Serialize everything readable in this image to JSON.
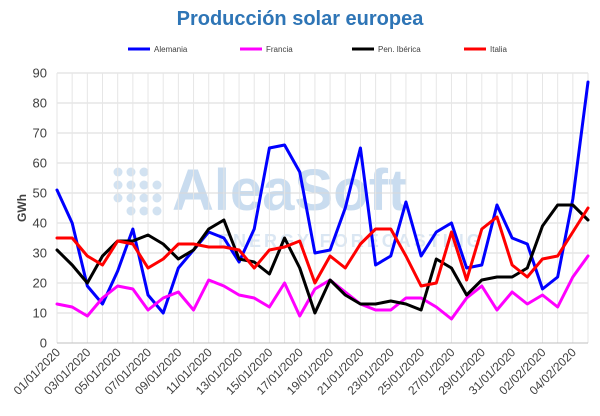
{
  "chart_data": {
    "type": "line",
    "title": "Producción solar europea",
    "ylabel": "GWh",
    "xlabel": "",
    "ylim": [
      0,
      90
    ],
    "yticks": [
      0,
      10,
      20,
      30,
      40,
      50,
      60,
      70,
      80,
      90
    ],
    "grid": true,
    "legend_position": "top",
    "x": [
      "01/01/2020",
      "02/01/2020",
      "03/01/2020",
      "04/01/2020",
      "05/01/2020",
      "06/01/2020",
      "07/01/2020",
      "08/01/2020",
      "09/01/2020",
      "10/01/2020",
      "11/01/2020",
      "12/01/2020",
      "13/01/2020",
      "14/01/2020",
      "15/01/2020",
      "16/01/2020",
      "17/01/2020",
      "18/01/2020",
      "19/01/2020",
      "20/01/2020",
      "21/01/2020",
      "22/01/2020",
      "23/01/2020",
      "24/01/2020",
      "25/01/2020",
      "26/01/2020",
      "27/01/2020",
      "28/01/2020",
      "29/01/2020",
      "30/01/2020",
      "31/01/2020",
      "01/02/2020",
      "02/02/2020",
      "03/02/2020",
      "04/02/2020",
      "05/02/2020"
    ],
    "x_tick_labels": [
      "01/01/2020",
      "03/01/2020",
      "05/01/2020",
      "07/01/2020",
      "09/01/2020",
      "11/01/2020",
      "13/01/2020",
      "15/01/2020",
      "17/01/2020",
      "19/01/2020",
      "21/01/2020",
      "23/01/2020",
      "25/01/2020",
      "27/01/2020",
      "29/01/2020",
      "31/01/2020",
      "02/02/2020",
      "04/02/2020"
    ],
    "series": [
      {
        "name": "Alemania",
        "color": "#0000ff",
        "values": [
          51,
          40,
          19,
          13,
          24,
          38,
          16,
          10,
          25,
          31,
          37,
          35,
          27,
          38,
          65,
          66,
          57,
          30,
          31,
          45,
          65,
          26,
          29,
          47,
          29,
          37,
          40,
          25,
          26,
          46,
          35,
          33,
          18,
          22,
          48,
          87
        ]
      },
      {
        "name": "Francia",
        "color": "#ff00ff",
        "values": [
          13,
          12,
          9,
          15,
          19,
          18,
          11,
          15,
          17,
          11,
          21,
          19,
          16,
          15,
          12,
          20,
          9,
          18,
          21,
          17,
          13,
          11,
          11,
          15,
          15,
          12,
          8,
          15,
          19,
          11,
          17,
          13,
          16,
          12,
          22,
          29
        ]
      },
      {
        "name": "Pen. Ibérica",
        "color": "#000000",
        "values": [
          31,
          26,
          20,
          29,
          34,
          34,
          36,
          33,
          28,
          31,
          38,
          41,
          28,
          27,
          23,
          35,
          25,
          10,
          21,
          16,
          13,
          13,
          14,
          13,
          11,
          28,
          25,
          16,
          21,
          22,
          22,
          25,
          39,
          46,
          46,
          41
        ]
      },
      {
        "name": "Italia",
        "color": "#ff0000",
        "values": [
          35,
          35,
          29,
          26,
          34,
          33,
          25,
          28,
          33,
          33,
          32,
          32,
          31,
          25,
          31,
          32,
          34,
          20,
          29,
          25,
          33,
          38,
          38,
          29,
          19,
          20,
          37,
          21,
          38,
          42,
          26,
          22,
          28,
          29,
          37,
          45
        ]
      }
    ]
  },
  "watermark": {
    "brand": "AleaSoft",
    "tagline": "ENERGY FORECASTING"
  }
}
